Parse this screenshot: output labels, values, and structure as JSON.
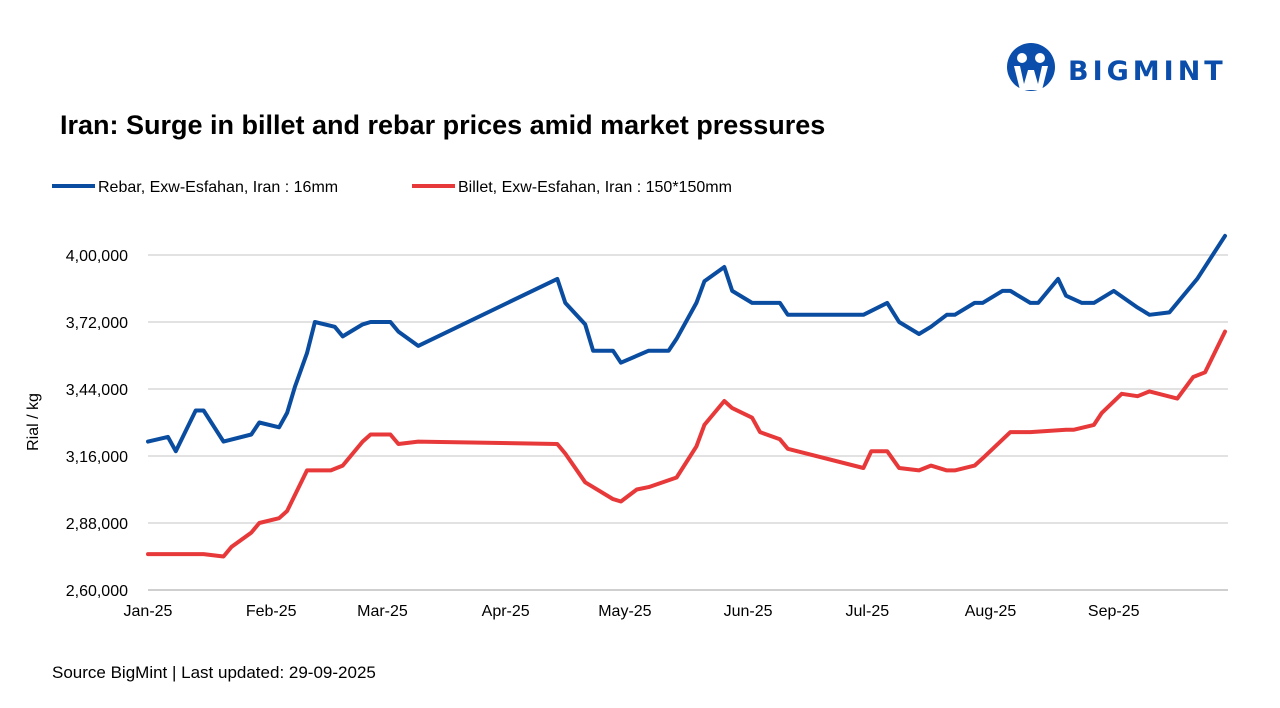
{
  "logo": {
    "text": "BIGMINT",
    "color": "#0a4dab"
  },
  "footer": {
    "source": "Source BigMint | Last updated: 29-09-2025"
  },
  "chart_data": {
    "type": "line",
    "title": "Iran: Surge in billet and rebar prices amid market pressures",
    "xlabel": "",
    "ylabel": "Rial / kg",
    "xlim": [
      "2025-01-01",
      "2025-09-29"
    ],
    "ylim": [
      260000,
      410000
    ],
    "grid": true,
    "legend": "top-left",
    "x_ticks": [
      {
        "date": "2025-01-01",
        "label": "Jan-25"
      },
      {
        "date": "2025-02-01",
        "label": "Feb-25"
      },
      {
        "date": "2025-03-01",
        "label": "Mar-25"
      },
      {
        "date": "2025-04-01",
        "label": "Apr-25"
      },
      {
        "date": "2025-05-01",
        "label": "May-25"
      },
      {
        "date": "2025-06-01",
        "label": "Jun-25"
      },
      {
        "date": "2025-07-01",
        "label": "Jul-25"
      },
      {
        "date": "2025-08-01",
        "label": "Aug-25"
      },
      {
        "date": "2025-09-01",
        "label": "Sep-25"
      }
    ],
    "y_ticks": [
      {
        "value": 260000,
        "label": "2,60,000"
      },
      {
        "value": 288000,
        "label": "2,88,000"
      },
      {
        "value": 316000,
        "label": "3,16,000"
      },
      {
        "value": 344000,
        "label": "3,44,000"
      },
      {
        "value": 372000,
        "label": "3,72,000"
      },
      {
        "value": 400000,
        "label": "4,00,000"
      }
    ],
    "series": [
      {
        "name": "Rebar, Exw-Esfahan, Iran : 16mm",
        "color": "#0a4da0",
        "x": [
          "2025-01-01",
          "2025-01-06",
          "2025-01-08",
          "2025-01-13",
          "2025-01-15",
          "2025-01-20",
          "2025-01-27",
          "2025-01-29",
          "2025-02-03",
          "2025-02-05",
          "2025-02-07",
          "2025-02-10",
          "2025-02-12",
          "2025-02-17",
          "2025-02-19",
          "2025-02-24",
          "2025-02-26",
          "2025-03-03",
          "2025-03-05",
          "2025-03-10",
          "2025-04-14",
          "2025-04-16",
          "2025-04-21",
          "2025-04-23",
          "2025-04-28",
          "2025-04-30",
          "2025-05-07",
          "2025-05-12",
          "2025-05-14",
          "2025-05-19",
          "2025-05-21",
          "2025-05-26",
          "2025-05-28",
          "2025-06-02",
          "2025-06-09",
          "2025-06-11",
          "2025-06-30",
          "2025-07-06",
          "2025-07-09",
          "2025-07-14",
          "2025-07-17",
          "2025-07-21",
          "2025-07-23",
          "2025-07-28",
          "2025-07-30",
          "2025-08-04",
          "2025-08-06",
          "2025-08-11",
          "2025-08-13",
          "2025-08-18",
          "2025-08-20",
          "2025-08-24",
          "2025-08-27",
          "2025-09-01",
          "2025-09-07",
          "2025-09-10",
          "2025-09-15",
          "2025-09-22",
          "2025-09-29"
        ],
        "values": [
          322000,
          324000,
          318000,
          335000,
          335000,
          322000,
          325000,
          330000,
          328000,
          334000,
          345000,
          359000,
          372000,
          370000,
          366000,
          371000,
          372000,
          372000,
          368000,
          362000,
          390000,
          380000,
          371000,
          360000,
          360000,
          355000,
          360000,
          360000,
          365000,
          380000,
          389000,
          395000,
          385000,
          380000,
          380000,
          375000,
          375000,
          380000,
          372000,
          367000,
          370000,
          375000,
          375000,
          380000,
          380000,
          385000,
          385000,
          380000,
          380000,
          390000,
          383000,
          380000,
          380000,
          385000,
          378000,
          375000,
          376000,
          390000,
          408000
        ]
      },
      {
        "name": "Billet, Exw-Esfahan, Iran : 150*150mm",
        "color": "#e8393a",
        "x": [
          "2025-01-01",
          "2025-01-06",
          "2025-01-15",
          "2025-01-20",
          "2025-01-22",
          "2025-01-27",
          "2025-01-29",
          "2025-02-03",
          "2025-02-05",
          "2025-02-10",
          "2025-02-16",
          "2025-02-19",
          "2025-02-24",
          "2025-02-26",
          "2025-03-03",
          "2025-03-05",
          "2025-03-10",
          "2025-04-14",
          "2025-04-16",
          "2025-04-21",
          "2025-04-23",
          "2025-04-28",
          "2025-04-30",
          "2025-05-04",
          "2025-05-07",
          "2025-05-14",
          "2025-05-19",
          "2025-05-21",
          "2025-05-26",
          "2025-05-28",
          "2025-06-02",
          "2025-06-04",
          "2025-06-09",
          "2025-06-11",
          "2025-06-30",
          "2025-07-02",
          "2025-07-06",
          "2025-07-09",
          "2025-07-14",
          "2025-07-17",
          "2025-07-21",
          "2025-07-23",
          "2025-07-28",
          "2025-07-30",
          "2025-08-06",
          "2025-08-11",
          "2025-08-20",
          "2025-08-22",
          "2025-08-27",
          "2025-08-29",
          "2025-09-03",
          "2025-09-07",
          "2025-09-10",
          "2025-09-17",
          "2025-09-21",
          "2025-09-24",
          "2025-09-29"
        ],
        "values": [
          275000,
          275000,
          275000,
          274000,
          278000,
          284000,
          288000,
          290000,
          293000,
          310000,
          310000,
          312000,
          322000,
          325000,
          325000,
          321000,
          322000,
          321000,
          317000,
          305000,
          303000,
          298000,
          297000,
          302000,
          303000,
          307000,
          320000,
          329000,
          339000,
          336000,
          332000,
          326000,
          323000,
          319000,
          311000,
          318000,
          318000,
          311000,
          310000,
          312000,
          310000,
          310000,
          312000,
          315000,
          326000,
          326000,
          327000,
          327000,
          329000,
          334000,
          342000,
          341000,
          343000,
          340000,
          349000,
          351000,
          368000
        ]
      }
    ]
  }
}
